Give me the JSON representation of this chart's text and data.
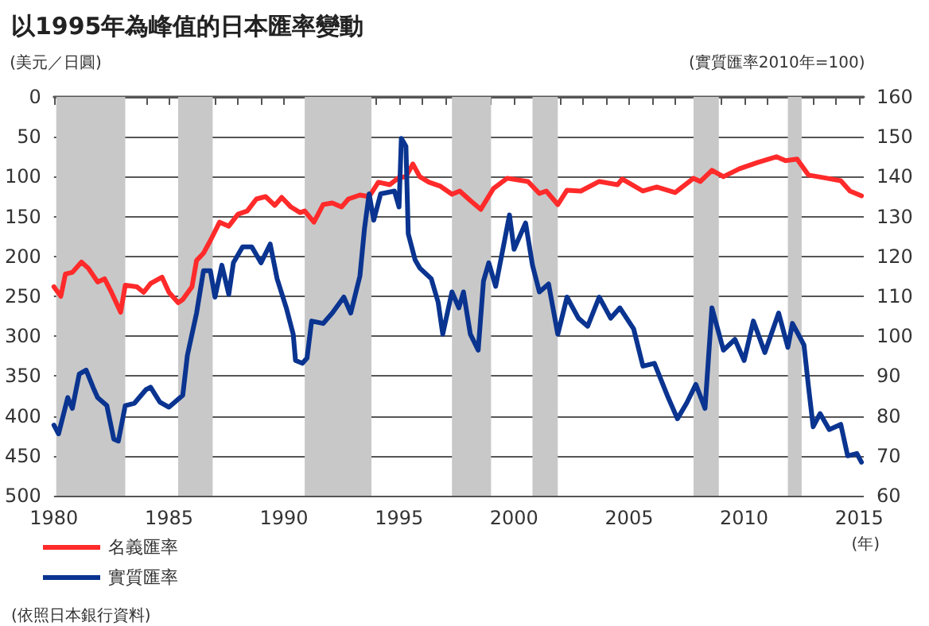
{
  "chart_data": {
    "type": "line",
    "title": "以1995年為峰值的日本匯率變動",
    "ylabel": "(美元／日圓)",
    "y2label": "(實質匯率2010年=100)",
    "xlabel": "(年)",
    "annotations": [
      "(依照日本銀行資料)"
    ],
    "xlim": [
      1980,
      2015.2
    ],
    "xticks": [
      1980,
      {
        "value": 1981,
        "label": null
      },
      {
        "value": 1982,
        "label": null
      },
      {
        "value": 1983,
        "label": null
      },
      {
        "value": 1984,
        "label": null
      },
      1985,
      {
        "value": 1986,
        "label": null
      },
      {
        "value": 1987,
        "label": null
      },
      {
        "value": 1988,
        "label": null
      },
      {
        "value": 1989,
        "label": null
      },
      1990,
      {
        "value": 1991,
        "label": null
      },
      {
        "value": 1992,
        "label": null
      },
      {
        "value": 1993,
        "label": null
      },
      {
        "value": 1994,
        "label": null
      },
      1995,
      {
        "value": 1996,
        "label": null
      },
      {
        "value": 1997,
        "label": null
      },
      {
        "value": 1998,
        "label": null
      },
      {
        "value": 1999,
        "label": null
      },
      2000,
      {
        "value": 2001,
        "label": null
      },
      {
        "value": 2002,
        "label": null
      },
      {
        "value": 2003,
        "label": null
      },
      {
        "value": 2004,
        "label": null
      },
      2005,
      {
        "value": 2006,
        "label": null
      },
      {
        "value": 2007,
        "label": null
      },
      {
        "value": 2008,
        "label": null
      },
      {
        "value": 2009,
        "label": null
      },
      2010,
      {
        "value": 2011,
        "label": null
      },
      {
        "value": 2012,
        "label": null
      },
      {
        "value": 2013,
        "label": null
      },
      {
        "value": 2014,
        "label": null
      },
      2015
    ],
    "ylim": [
      500,
      0
    ],
    "yticks": [
      0,
      50,
      100,
      150,
      200,
      250,
      300,
      350,
      400,
      450,
      500
    ],
    "y2lim": [
      60,
      160
    ],
    "y2ticks": [
      60,
      70,
      80,
      90,
      100,
      110,
      120,
      130,
      140,
      150,
      160
    ],
    "grid": "y",
    "legend": "bottom left",
    "marker": "none",
    "line_style": "solid",
    "bands": [
      {
        "axis": "x",
        "from": 1980.1,
        "to": 1983.1,
        "color": "#c8c8c8"
      },
      {
        "axis": "x",
        "from": 1985.4,
        "to": 1986.9,
        "color": "#c8c8c8"
      },
      {
        "axis": "x",
        "from": 1990.9,
        "to": 1993.8,
        "color": "#c8c8c8"
      },
      {
        "axis": "x",
        "from": 1997.3,
        "to": 1999.0,
        "color": "#c8c8c8"
      },
      {
        "axis": "x",
        "from": 2000.8,
        "to": 2001.9,
        "color": "#c8c8c8"
      },
      {
        "axis": "x",
        "from": 2007.8,
        "to": 2008.9,
        "color": "#c8c8c8"
      },
      {
        "axis": "x",
        "from": 2011.9,
        "to": 2012.5,
        "color": "#c8c8c8"
      }
    ],
    "series": [
      {
        "name": "名義匯率",
        "color": "#ff2a2a",
        "x": [
          1980.0,
          1980.3,
          1980.5,
          1980.8,
          1981.2,
          1981.5,
          1981.9,
          1982.2,
          1982.5,
          1982.9,
          1983.1,
          1983.6,
          1983.9,
          1984.2,
          1984.7,
          1985.0,
          1985.4,
          1985.6,
          1986.0,
          1986.2,
          1986.5,
          1986.8,
          1987.2,
          1987.6,
          1988.0,
          1988.4,
          1988.8,
          1989.2,
          1989.6,
          1989.9,
          1990.3,
          1990.7,
          1990.9,
          1991.3,
          1991.7,
          1992.1,
          1992.5,
          1992.8,
          1993.3,
          1993.7,
          1994.1,
          1994.6,
          1995.0,
          1995.3,
          1995.6,
          1995.9,
          1996.3,
          1996.8,
          1997.3,
          1997.64,
          1998.1,
          1998.55,
          1999.1,
          1999.7,
          2000.6,
          2001.1,
          2001.4,
          2001.9,
          2002.3,
          2002.9,
          2003.7,
          2004.5,
          2004.7,
          2005.6,
          2006.2,
          2007.0,
          2007.8,
          2008.1,
          2008.6,
          2009.1,
          2009.8,
          2010.6,
          2011.4,
          2011.8,
          2012.3,
          2012.8,
          2013.6,
          2014.2,
          2014.6,
          2015.1
        ],
        "values": [
          238,
          250,
          222,
          220,
          207,
          215,
          232,
          228,
          245,
          270,
          236,
          238,
          245,
          234,
          226,
          245,
          258,
          254,
          238,
          205,
          196,
          180,
          157,
          162,
          147,
          143,
          128,
          125,
          136,
          126,
          138,
          145,
          143,
          157,
          135,
          133,
          138,
          128,
          123,
          125,
          107,
          110,
          101,
          100,
          84,
          100,
          107,
          112,
          122,
          118,
          130,
          141,
          115,
          102,
          106,
          121,
          118,
          135,
          117,
          118,
          106,
          110,
          103,
          118,
          113,
          120,
          102,
          106,
          92,
          100,
          90,
          82,
          75,
          80,
          78,
          98,
          102,
          105,
          118,
          124
        ]
      },
      {
        "name": "實質匯率",
        "color": "#0a3490",
        "axis": "y2",
        "x": [
          1980.0,
          1980.2,
          1980.6,
          1980.8,
          1981.1,
          1981.4,
          1981.7,
          1981.9,
          1982.3,
          1982.6,
          1982.8,
          1983.1,
          1983.5,
          1984.0,
          1984.2,
          1984.6,
          1985.0,
          1985.6,
          1985.8,
          1986.2,
          1986.5,
          1986.8,
          1987.0,
          1987.3,
          1987.6,
          1987.8,
          1988.2,
          1988.6,
          1989.0,
          1989.4,
          1989.7,
          1990.1,
          1990.4,
          1990.5,
          1990.8,
          1991.0,
          1991.2,
          1991.7,
          1992.1,
          1992.6,
          1992.9,
          1993.3,
          1993.5,
          1993.7,
          1993.9,
          1994.2,
          1994.8,
          1995.0,
          1995.1,
          1995.3,
          1995.4,
          1995.7,
          1995.9,
          1996.4,
          1996.7,
          1996.9,
          1997.3,
          1997.6,
          1997.8,
          1998.1,
          1998.44,
          1998.67,
          1998.9,
          1999.2,
          1999.6,
          1999.8,
          2000.0,
          2000.5,
          2000.8,
          2001.1,
          2001.5,
          2001.9,
          2002.3,
          2002.8,
          2003.2,
          2003.7,
          2004.2,
          2004.6,
          2005.2,
          2005.6,
          2006.1,
          2006.7,
          2007.1,
          2007.5,
          2007.9,
          2008.3,
          2008.6,
          2009.1,
          2009.6,
          2010.0,
          2010.4,
          2010.9,
          2011.5,
          2011.9,
          2012.1,
          2012.6,
          2012.8,
          2013.0,
          2013.3,
          2013.7,
          2014.2,
          2014.5,
          2014.9,
          2015.1
        ],
        "values": [
          77.7,
          75.5,
          84.6,
          81.9,
          90.5,
          91.5,
          87.2,
          84.6,
          82.6,
          74.2,
          73.7,
          82.6,
          83.2,
          86.6,
          87.2,
          83.5,
          82.2,
          85.2,
          95.2,
          105.8,
          116.4,
          116.4,
          109.8,
          117.8,
          110.5,
          118.4,
          122.4,
          122.4,
          118.4,
          123.1,
          114.4,
          107.1,
          100.5,
          93.9,
          93.2,
          94.5,
          103.8,
          103.2,
          105.8,
          109.8,
          105.8,
          115.1,
          127.1,
          135.7,
          129.1,
          135.7,
          136.4,
          132.4,
          149.6,
          147.6,
          125.7,
          119.1,
          117.1,
          114.4,
          108.5,
          100.5,
          111.1,
          107.1,
          111.1,
          100.5,
          96.5,
          113.8,
          118.4,
          112.5,
          124.4,
          130.4,
          121.8,
          128.4,
          117.8,
          111.1,
          113.1,
          100.5,
          109.8,
          104.5,
          102.5,
          109.8,
          104.5,
          107.1,
          101.8,
          92.5,
          93.2,
          84.6,
          79.3,
          83.2,
          87.9,
          81.9,
          107.1,
          96.5,
          99.2,
          93.9,
          103.8,
          95.9,
          105.8,
          97.2,
          103.2,
          97.8,
          87.2,
          77.3,
          80.6,
          76.6,
          77.9,
          70.0,
          70.6,
          68.4
        ]
      }
    ]
  }
}
